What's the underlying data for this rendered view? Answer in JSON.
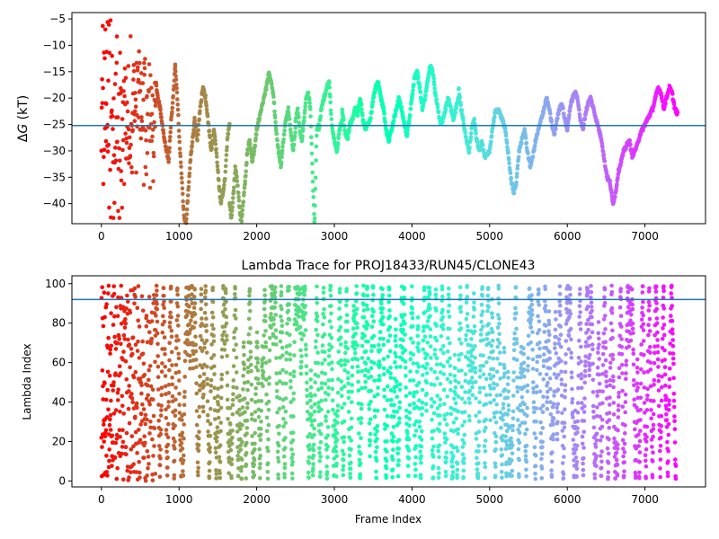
{
  "chart_data": [
    {
      "type": "scatter",
      "title": "",
      "xlabel": "",
      "ylabel_prefix": "Δ",
      "ylabel_symbol": "G",
      "ylabel_suffix": " (kT)",
      "xlim": [
        -380,
        7780
      ],
      "ylim": [
        -43.8,
        -3.8
      ],
      "xticks": [
        0,
        1000,
        2000,
        3000,
        4000,
        5000,
        6000,
        7000
      ],
      "yticks": [
        -5,
        -10,
        -15,
        -20,
        -25,
        -30,
        -35,
        -40
      ],
      "hline": -25.2,
      "hline_color": "#1f77b4",
      "colormap": "rainbow",
      "segments": [
        {
          "x0": 0,
          "x1": 80,
          "values": [
            -8,
            -12,
            -20,
            -27,
            -35,
            -10,
            -22,
            -30,
            -16,
            -26
          ]
        },
        {
          "x0": 80,
          "x1": 200,
          "values": [
            -5,
            -10,
            -15,
            -22,
            -30,
            -38,
            -41,
            -28,
            -18,
            -12,
            -24,
            -33
          ]
        },
        {
          "x0": 200,
          "x1": 400,
          "values": [
            -10,
            -18,
            -25,
            -32,
            -42,
            -28,
            -20,
            -15,
            -26,
            -35,
            -22,
            -30
          ]
        },
        {
          "x0": 400,
          "x1": 700,
          "values": [
            -12,
            -18,
            -25,
            -30,
            -22,
            -15,
            -28,
            -35,
            -20,
            -17,
            -24,
            -19
          ]
        },
        {
          "x0": 700,
          "x1": 950,
          "values": [
            -17,
            -20,
            -22,
            -25,
            -28,
            -30,
            -32,
            -25,
            -20,
            -14
          ]
        },
        {
          "x0": 950,
          "x1": 1200,
          "values": [
            -14,
            -20,
            -28,
            -35,
            -42,
            -44,
            -38,
            -32,
            -28,
            -24
          ]
        },
        {
          "x0": 1200,
          "x1": 1450,
          "values": [
            -24,
            -28,
            -22,
            -18,
            -20,
            -25,
            -30,
            -26
          ]
        },
        {
          "x0": 1450,
          "x1": 1650,
          "values": [
            -26,
            -30,
            -35,
            -40,
            -38,
            -35,
            -28,
            -25
          ]
        },
        {
          "x0": 1650,
          "x1": 1850,
          "values": [
            -40,
            -43,
            -38,
            -33,
            -36,
            -40,
            -44,
            -40,
            -36
          ]
        },
        {
          "x0": 1850,
          "x1": 2000,
          "values": [
            -36,
            -30,
            -28,
            -32,
            -30,
            -26
          ]
        },
        {
          "x0": 2000,
          "x1": 2250,
          "values": [
            -26,
            -24,
            -22,
            -20,
            -18,
            -15,
            -17,
            -20,
            -26
          ]
        },
        {
          "x0": 2250,
          "x1": 2500,
          "values": [
            -26,
            -30,
            -33,
            -28,
            -24,
            -22,
            -26,
            -30,
            -26
          ]
        },
        {
          "x0": 2500,
          "x1": 2800,
          "values": [
            -24,
            -22,
            -26,
            -28,
            -24,
            -20,
            -19,
            -22,
            -34,
            -44,
            -26,
            -25
          ]
        },
        {
          "x0": 2800,
          "x1": 3100,
          "values": [
            -26,
            -22,
            -20,
            -18,
            -17,
            -25,
            -28,
            -30,
            -26,
            -24
          ]
        },
        {
          "x0": 3100,
          "x1": 3400,
          "values": [
            -22,
            -26,
            -28,
            -25,
            -24,
            -22,
            -23,
            -20,
            -24,
            -26
          ]
        },
        {
          "x0": 3400,
          "x1": 3700,
          "values": [
            -26,
            -25,
            -24,
            -20,
            -18,
            -17,
            -20,
            -22,
            -26,
            -28
          ]
        },
        {
          "x0": 3700,
          "x1": 4000,
          "values": [
            -28,
            -26,
            -24,
            -22,
            -20,
            -22,
            -25,
            -27,
            -24,
            -20
          ]
        },
        {
          "x0": 4000,
          "x1": 4300,
          "values": [
            -20,
            -16,
            -15,
            -18,
            -22,
            -20,
            -17,
            -14,
            -15,
            -19
          ]
        },
        {
          "x0": 4300,
          "x1": 4600,
          "values": [
            -19,
            -22,
            -25,
            -24,
            -22,
            -20,
            -22,
            -24,
            -22,
            -20
          ]
        },
        {
          "x0": 4600,
          "x1": 4900,
          "values": [
            -18,
            -22,
            -25,
            -28,
            -30,
            -26,
            -24,
            -28,
            -30,
            -28
          ]
        },
        {
          "x0": 4900,
          "x1": 5200,
          "values": [
            -28,
            -31,
            -31,
            -30,
            -26,
            -23,
            -22,
            -23,
            -24,
            -26
          ]
        },
        {
          "x0": 5200,
          "x1": 5450,
          "values": [
            -26,
            -30,
            -35,
            -38,
            -36,
            -30,
            -28,
            -26
          ]
        },
        {
          "x0": 5450,
          "x1": 5700,
          "values": [
            -26,
            -30,
            -33,
            -31,
            -28,
            -26,
            -24,
            -22
          ]
        },
        {
          "x0": 5700,
          "x1": 6000,
          "values": [
            -22,
            -20,
            -22,
            -25,
            -27,
            -24,
            -22,
            -21,
            -24,
            -26
          ]
        },
        {
          "x0": 6000,
          "x1": 6300,
          "values": [
            -26,
            -22,
            -20,
            -19,
            -20,
            -24,
            -26,
            -23,
            -21,
            -20
          ]
        },
        {
          "x0": 6300,
          "x1": 6550,
          "values": [
            -20,
            -22,
            -24,
            -26,
            -28,
            -32,
            -35,
            -36
          ]
        },
        {
          "x0": 6550,
          "x1": 6800,
          "values": [
            -36,
            -40,
            -38,
            -34,
            -32,
            -30,
            -29,
            -28
          ]
        },
        {
          "x0": 6800,
          "x1": 7100,
          "values": [
            -28,
            -31,
            -30,
            -29,
            -27,
            -26,
            -25,
            -24,
            -23,
            -22
          ]
        },
        {
          "x0": 7100,
          "x1": 7420,
          "values": [
            -22,
            -20,
            -18,
            -19,
            -22,
            -20,
            -18,
            -19,
            -22,
            -23
          ]
        }
      ]
    },
    {
      "type": "scatter",
      "title": "Lambda Trace for PROJ18433/RUN45/CLONE43",
      "xlabel": "Frame Index",
      "ylabel": "Lambda Index",
      "xlim": [
        -380,
        7780
      ],
      "ylim": [
        -3,
        104
      ],
      "xticks": [
        0,
        1000,
        2000,
        3000,
        4000,
        5000,
        6000,
        7000
      ],
      "yticks": [
        0,
        20,
        40,
        60,
        80,
        100
      ],
      "hline": 92,
      "hline_color": "#1f77b4",
      "colormap": "rainbow",
      "x_start": 0,
      "x_end": 7400,
      "y_min": 0,
      "y_max": 99
    }
  ]
}
